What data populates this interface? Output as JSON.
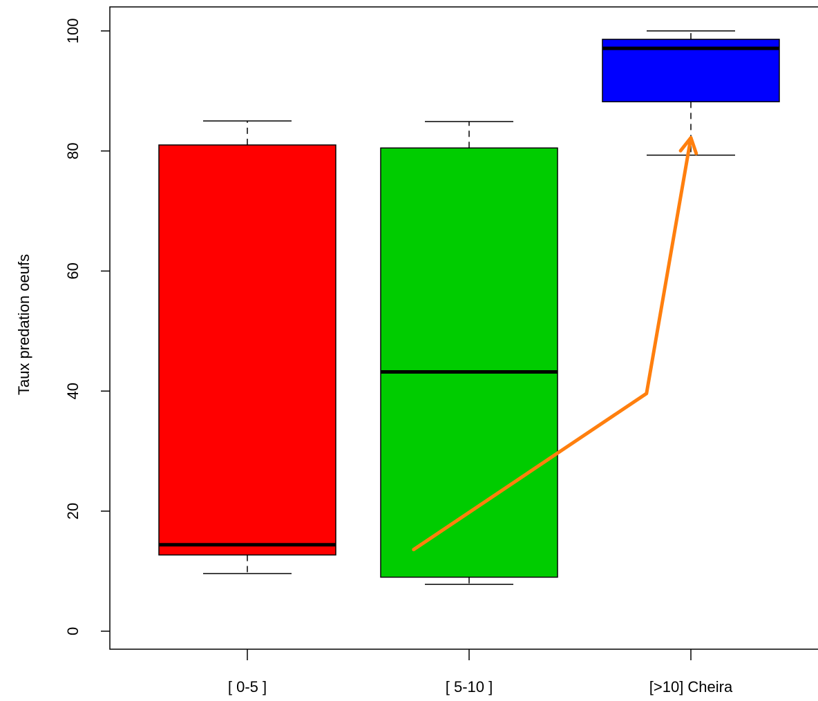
{
  "chart_data": {
    "type": "boxplot",
    "title": "",
    "xlabel": "",
    "ylabel": "Taux predation oeufs",
    "ylim": [
      -3,
      104
    ],
    "y_ticks": [
      0,
      20,
      40,
      60,
      80,
      100
    ],
    "grid": false,
    "legend": "none",
    "categories": [
      "[ 0-5 ]",
      "[ 5-10 ]",
      "[>10] Cheira"
    ],
    "boxes": [
      {
        "category": "[ 0-5 ]",
        "min": 9.6,
        "q1": 12.7,
        "median": 14.4,
        "q3": 81.0,
        "max": 85.0,
        "color": "#ff0000"
      },
      {
        "category": "[ 5-10 ]",
        "min": 7.8,
        "q1": 9.0,
        "median": 43.2,
        "q3": 80.5,
        "max": 84.9,
        "color": "#00cc00"
      },
      {
        "category": "[>10] Cheira",
        "min": 79.3,
        "q1": 88.2,
        "median": 97.1,
        "q3": 98.6,
        "max": 100.0,
        "color": "#0000ff"
      }
    ],
    "annotation_arrow": {
      "color": "#ff7f0e",
      "points": [
        [
          1.75,
          13.6
        ],
        [
          2.8,
          39.6
        ],
        [
          3.06,
          82.2
        ]
      ]
    }
  }
}
